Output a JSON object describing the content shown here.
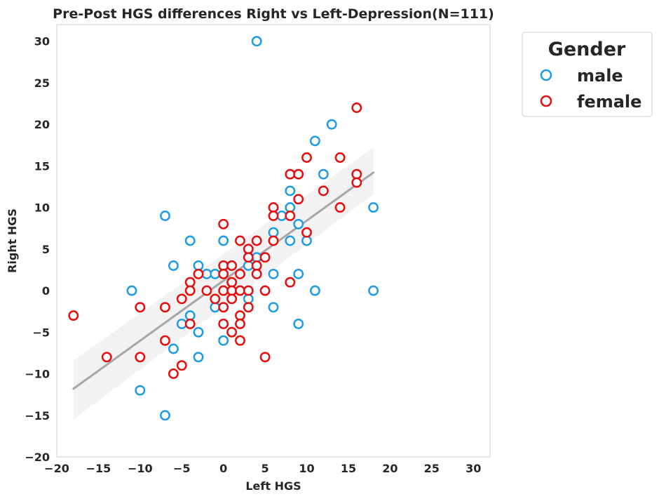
{
  "chart_data": {
    "type": "scatter",
    "title": "Pre-Post HGS differences Right vs Left-Depression(N=111)",
    "xlabel": "Left HGS",
    "ylabel": "Right HGS",
    "xlim": [
      -20,
      32
    ],
    "ylim": [
      -20,
      32
    ],
    "xticks": [
      -20,
      -15,
      -10,
      -5,
      0,
      5,
      10,
      15,
      20,
      25,
      30
    ],
    "yticks": [
      -20,
      -15,
      -10,
      -5,
      0,
      5,
      10,
      15,
      20,
      25,
      30
    ],
    "grid": false,
    "legend": {
      "title": "Gender",
      "placement": "outside-top-right"
    },
    "regression": {
      "x": [
        -18,
        18
      ],
      "y": [
        -11.8,
        14.2
      ],
      "ci_lower": [
        -15.5,
        11.6
      ],
      "ci_upper": [
        -8.4,
        17.2
      ],
      "color": "#a6a6a6"
    },
    "series": [
      {
        "name": "male",
        "color": "#1f9be6",
        "points": [
          [
            4,
            30
          ],
          [
            13,
            20
          ],
          [
            11,
            18
          ],
          [
            12,
            14
          ],
          [
            8,
            12
          ],
          [
            8,
            10
          ],
          [
            7,
            9
          ],
          [
            18,
            10
          ],
          [
            -7,
            9
          ],
          [
            9,
            8
          ],
          [
            6,
            7
          ],
          [
            -4,
            6
          ],
          [
            0,
            6
          ],
          [
            8,
            6
          ],
          [
            10,
            6
          ],
          [
            4,
            4
          ],
          [
            -6,
            3
          ],
          [
            -3,
            3
          ],
          [
            1,
            3
          ],
          [
            3,
            3
          ],
          [
            -2,
            2
          ],
          [
            -1,
            2
          ],
          [
            6,
            2
          ],
          [
            9,
            2
          ],
          [
            -11,
            0
          ],
          [
            11,
            0
          ],
          [
            18,
            0
          ],
          [
            3,
            -1
          ],
          [
            -1,
            -2
          ],
          [
            6,
            -2
          ],
          [
            -4,
            -3
          ],
          [
            -5,
            -4
          ],
          [
            9,
            -4
          ],
          [
            -3,
            -5
          ],
          [
            0,
            -6
          ],
          [
            -6,
            -7
          ],
          [
            -3,
            -8
          ],
          [
            -10,
            -12
          ],
          [
            -7,
            -15
          ]
        ]
      },
      {
        "name": "female",
        "color": "#e60d0d",
        "points": [
          [
            16,
            22
          ],
          [
            10,
            16
          ],
          [
            14,
            16
          ],
          [
            8,
            14
          ],
          [
            9,
            14
          ],
          [
            16,
            14
          ],
          [
            16,
            13
          ],
          [
            12,
            12
          ],
          [
            9,
            11
          ],
          [
            6,
            10
          ],
          [
            14,
            10
          ],
          [
            6,
            9
          ],
          [
            8,
            9
          ],
          [
            0,
            8
          ],
          [
            10,
            7
          ],
          [
            2,
            6
          ],
          [
            4,
            6
          ],
          [
            6,
            6
          ],
          [
            3,
            5
          ],
          [
            3,
            4
          ],
          [
            5,
            4
          ],
          [
            0,
            3
          ],
          [
            1,
            3
          ],
          [
            4,
            3
          ],
          [
            -3,
            2
          ],
          [
            0,
            2
          ],
          [
            2,
            2
          ],
          [
            4,
            2
          ],
          [
            -4,
            1
          ],
          [
            1,
            1
          ],
          [
            8,
            1
          ],
          [
            -4,
            0
          ],
          [
            -2,
            0
          ],
          [
            0,
            0
          ],
          [
            1,
            0
          ],
          [
            2,
            0
          ],
          [
            3,
            0
          ],
          [
            5,
            0
          ],
          [
            -5,
            -1
          ],
          [
            -1,
            -1
          ],
          [
            1,
            -1
          ],
          [
            -18,
            -3
          ],
          [
            -10,
            -2
          ],
          [
            -7,
            -2
          ],
          [
            0,
            -2
          ],
          [
            3,
            -2
          ],
          [
            2,
            -3
          ],
          [
            -4,
            -4
          ],
          [
            0,
            -4
          ],
          [
            2,
            -4
          ],
          [
            1,
            -5
          ],
          [
            -7,
            -6
          ],
          [
            2,
            -6
          ],
          [
            -14,
            -8
          ],
          [
            -10,
            -8
          ],
          [
            5,
            -8
          ],
          [
            -5,
            -9
          ],
          [
            -6,
            -10
          ]
        ]
      }
    ]
  }
}
